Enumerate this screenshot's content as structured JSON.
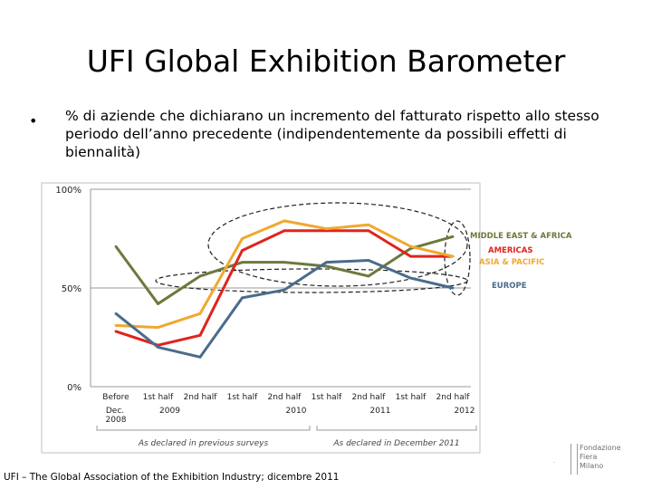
{
  "slide": {
    "title": "UFI Global Exhibition Barometer",
    "bullet_char": "•",
    "bullet_text": "% di aziende che dichiarano un incremento del fatturato rispetto allo stesso periodo dell’anno precedente (indipendentemente da possibili effetti di biennalità)",
    "footer": "UFI – The Global Association of the Exhibition Industry; dicembre 2011",
    "logo_text": "Fondazione\nFiera\nMilano"
  },
  "chart_data": {
    "type": "line",
    "y_ticks": [
      "100%",
      "50%",
      "0%"
    ],
    "ylim": [
      0,
      100
    ],
    "categories": [
      {
        "line1": "Before",
        "line2": "Dec.",
        "line3": "2008"
      },
      {
        "line1": "1st half",
        "line2": "2009",
        "line3": ""
      },
      {
        "line1": "2nd half",
        "line2": "",
        "line3": ""
      },
      {
        "line1": "1st half",
        "line2": "",
        "line3": ""
      },
      {
        "line1": "2nd half",
        "line2": "2010",
        "line3": ""
      },
      {
        "line1": "1st half",
        "line2": "",
        "line3": ""
      },
      {
        "line1": "2nd half",
        "line2": "2011",
        "line3": ""
      },
      {
        "line1": "1st half",
        "line2": "",
        "line3": ""
      },
      {
        "line1": "2nd half",
        "line2": "2012",
        "line3": ""
      }
    ],
    "group_labels": [
      "As declared in previous surveys",
      "As declared in December 2011"
    ],
    "series": [
      {
        "name": "MIDDLE EAST & AFRICA",
        "color": "#6b7a3c",
        "values": [
          71,
          42,
          56,
          63,
          63,
          61,
          56,
          70,
          76
        ]
      },
      {
        "name": "AMERICAS",
        "color": "#e0231c",
        "values": [
          28,
          21,
          26,
          69,
          79,
          79,
          79,
          66,
          66
        ]
      },
      {
        "name": "ASIA & PACIFIC",
        "color": "#f0a830",
        "values": [
          31,
          30,
          37,
          75,
          84,
          80,
          82,
          71,
          66
        ]
      },
      {
        "name": "EUROPE",
        "color": "#4a6b8c",
        "values": [
          37,
          20,
          15,
          45,
          49,
          63,
          64,
          55,
          50
        ]
      }
    ],
    "grid": true
  }
}
